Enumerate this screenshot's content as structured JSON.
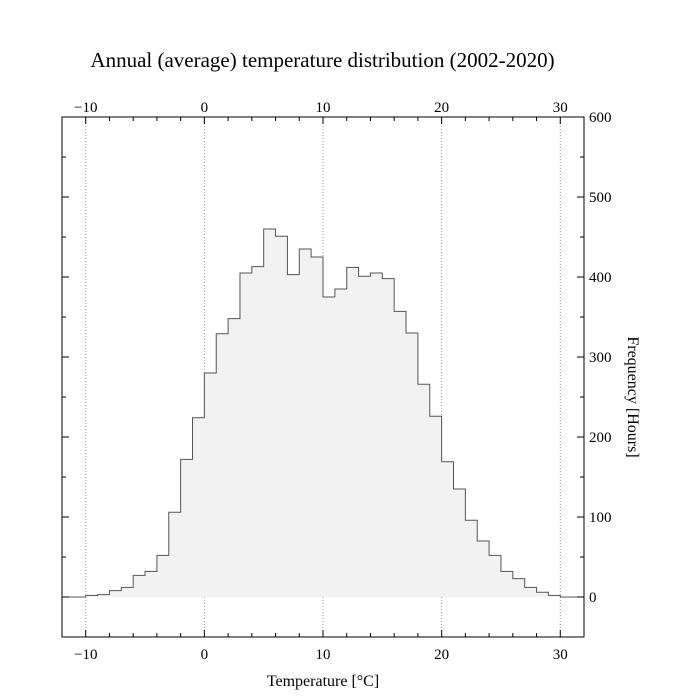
{
  "chart_data": {
    "type": "histogram",
    "title": "Annual (average) temperature distribution (2002-2020)",
    "xlabel": "Temperature [°C]",
    "ylabel": "Frequency [Hours]",
    "xlim": [
      -12,
      32
    ],
    "ylim": [
      -50,
      600
    ],
    "x_ticks": [
      -10,
      0,
      10,
      20,
      30
    ],
    "x_tick_labels": [
      "−10",
      "0",
      "10",
      "20",
      "30"
    ],
    "y_ticks": [
      0,
      100,
      200,
      300,
      400,
      500,
      600
    ],
    "y_tick_labels": [
      "0",
      "100",
      "200",
      "300",
      "400",
      "500",
      "600"
    ],
    "grid": "vertical dotted at major x ticks",
    "bin_width": 1,
    "bin_start": -12,
    "values": [
      0,
      0,
      2,
      3,
      8,
      12,
      27,
      32,
      52,
      106,
      172,
      224,
      280,
      329,
      348,
      405,
      413,
      460,
      451,
      403,
      435,
      425,
      375,
      385,
      412,
      401,
      405,
      398,
      357,
      330,
      266,
      226,
      169,
      135,
      96,
      70,
      52,
      32,
      23,
      12,
      6,
      2,
      0,
      0
    ],
    "fill_color": "#f2f2f2",
    "line_color": "#555555"
  }
}
